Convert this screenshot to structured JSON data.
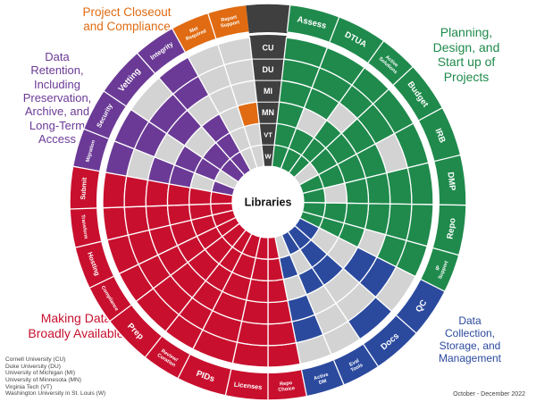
{
  "center_label": "Libraries",
  "quadrant_titles": [
    {
      "key": "closeout",
      "lines": [
        "Project Closeout",
        "and Compliance"
      ],
      "color": "#e06b12"
    },
    {
      "key": "planning",
      "lines": [
        "Planning,",
        "Design, and",
        "Start up of",
        "Projects"
      ],
      "color": "#1f8a4c"
    },
    {
      "key": "retention",
      "lines": [
        "Data",
        "Retention,",
        "Including",
        "Preservation,",
        "Archive, and",
        "Long-Term",
        "Access"
      ],
      "color": "#6b3a96"
    },
    {
      "key": "available",
      "lines": [
        "Making Data",
        "Broadly Available"
      ],
      "color": "#c8102e"
    },
    {
      "key": "collection",
      "lines": [
        "Data",
        "Collection,",
        "Storage, and",
        "Management"
      ],
      "color": "#2b4a9e"
    }
  ],
  "legend": [
    "Cornell University (CU)",
    "Duke University (DU)",
    "University of Michigan (MI)",
    "University of Minnesota (MN)",
    "Virginia Tech (VT)",
    "Washington University in St. Louis (W)"
  ],
  "date_label": "October - December 2022",
  "institutions": [
    "CU",
    "DU",
    "MI",
    "MN",
    "VT",
    "W"
  ],
  "colors": {
    "planning": "#1f8a4c",
    "collection": "#2b4a9e",
    "available": "#c8102e",
    "retention": "#6b3a96",
    "closeout": "#e06b12",
    "label_band": "#3f3f3f",
    "empty": "#d3d3d3"
  },
  "segments": [
    {
      "label": "Assess",
      "cat": "planning",
      "size": "big",
      "fills": [
        1,
        1,
        1,
        1,
        1,
        1
      ]
    },
    {
      "label": "DTUA",
      "cat": "planning",
      "size": "big",
      "fills": [
        1,
        1,
        1,
        0,
        1,
        1
      ]
    },
    {
      "label": "Active Solutions",
      "cat": "planning",
      "size": "small",
      "fills": [
        1,
        1,
        0,
        1,
        1,
        1
      ]
    },
    {
      "label": "Budget",
      "cat": "planning",
      "size": "big",
      "fills": [
        1,
        1,
        1,
        1,
        1,
        0
      ]
    },
    {
      "label": "IRB",
      "cat": "planning",
      "size": "big",
      "fills": [
        1,
        0,
        1,
        1,
        1,
        1
      ]
    },
    {
      "label": "DMP",
      "cat": "planning",
      "size": "big",
      "fills": [
        1,
        1,
        1,
        1,
        0,
        1
      ]
    },
    {
      "label": "Repo",
      "cat": "planning",
      "size": "big",
      "fills": [
        1,
        1,
        1,
        1,
        1,
        1
      ]
    },
    {
      "label": "IP Support",
      "cat": "planning",
      "size": "small",
      "fills": [
        1,
        1,
        0,
        1,
        1,
        1
      ]
    },
    {
      "label": "QC",
      "cat": "collection",
      "size": "big",
      "fills": [
        0,
        1,
        1,
        0,
        0,
        1
      ]
    },
    {
      "label": "Docs",
      "cat": "collection",
      "size": "big",
      "fills": [
        1,
        0,
        0,
        1,
        1,
        1
      ]
    },
    {
      "label": "Eval Tools",
      "cat": "collection",
      "size": "small",
      "fills": [
        0,
        0,
        0,
        1,
        0,
        1
      ]
    },
    {
      "label": "Active DM",
      "cat": "collection",
      "size": "small",
      "fills": [
        0,
        1,
        1,
        0,
        1,
        0
      ]
    },
    {
      "label": "Repo Choice",
      "cat": "available",
      "size": "small",
      "fills": [
        1,
        1,
        1,
        1,
        1,
        1
      ]
    },
    {
      "label": "Licenses",
      "cat": "available",
      "size": "mid",
      "fills": [
        1,
        1,
        1,
        1,
        1,
        1
      ]
    },
    {
      "label": "PIDs",
      "cat": "available",
      "size": "big",
      "fills": [
        1,
        1,
        1,
        1,
        1,
        1
      ]
    },
    {
      "label": "Review/ Curation",
      "cat": "available",
      "size": "small",
      "fills": [
        1,
        1,
        1,
        1,
        1,
        1
      ]
    },
    {
      "label": "Prep",
      "cat": "available",
      "size": "big",
      "fills": [
        1,
        1,
        1,
        1,
        1,
        1
      ]
    },
    {
      "label": "Compliance",
      "cat": "available",
      "size": "small",
      "fills": [
        1,
        1,
        1,
        1,
        1,
        1
      ]
    },
    {
      "label": "Hosting",
      "cat": "available",
      "size": "mid",
      "fills": [
        1,
        1,
        1,
        1,
        1,
        1
      ]
    },
    {
      "label": "Transform",
      "cat": "available",
      "size": "small",
      "fills": [
        1,
        1,
        1,
        1,
        1,
        1
      ]
    },
    {
      "label": "Submit",
      "cat": "available",
      "size": "mid",
      "fills": [
        1,
        1,
        1,
        1,
        1,
        1
      ]
    },
    {
      "label": "Migration",
      "cat": "retention",
      "size": "small",
      "fills": [
        1,
        0,
        1,
        1,
        0,
        1
      ]
    },
    {
      "label": "Security",
      "cat": "retention",
      "size": "mid",
      "fills": [
        1,
        1,
        0,
        1,
        1,
        0
      ]
    },
    {
      "label": "Vetting",
      "cat": "retention",
      "size": "big",
      "fills": [
        0,
        1,
        1,
        0,
        1,
        1
      ]
    },
    {
      "label": "Integrity",
      "cat": "retention",
      "size": "mid",
      "fills": [
        1,
        1,
        0,
        1,
        1,
        1
      ]
    },
    {
      "label": "Met Required",
      "cat": "closeout",
      "size": "small",
      "fills": [
        0,
        0,
        0,
        0,
        0,
        0
      ]
    },
    {
      "label": "Report Support",
      "cat": "closeout",
      "size": "small",
      "fills": [
        0,
        0,
        0,
        1,
        0,
        0
      ]
    }
  ]
}
